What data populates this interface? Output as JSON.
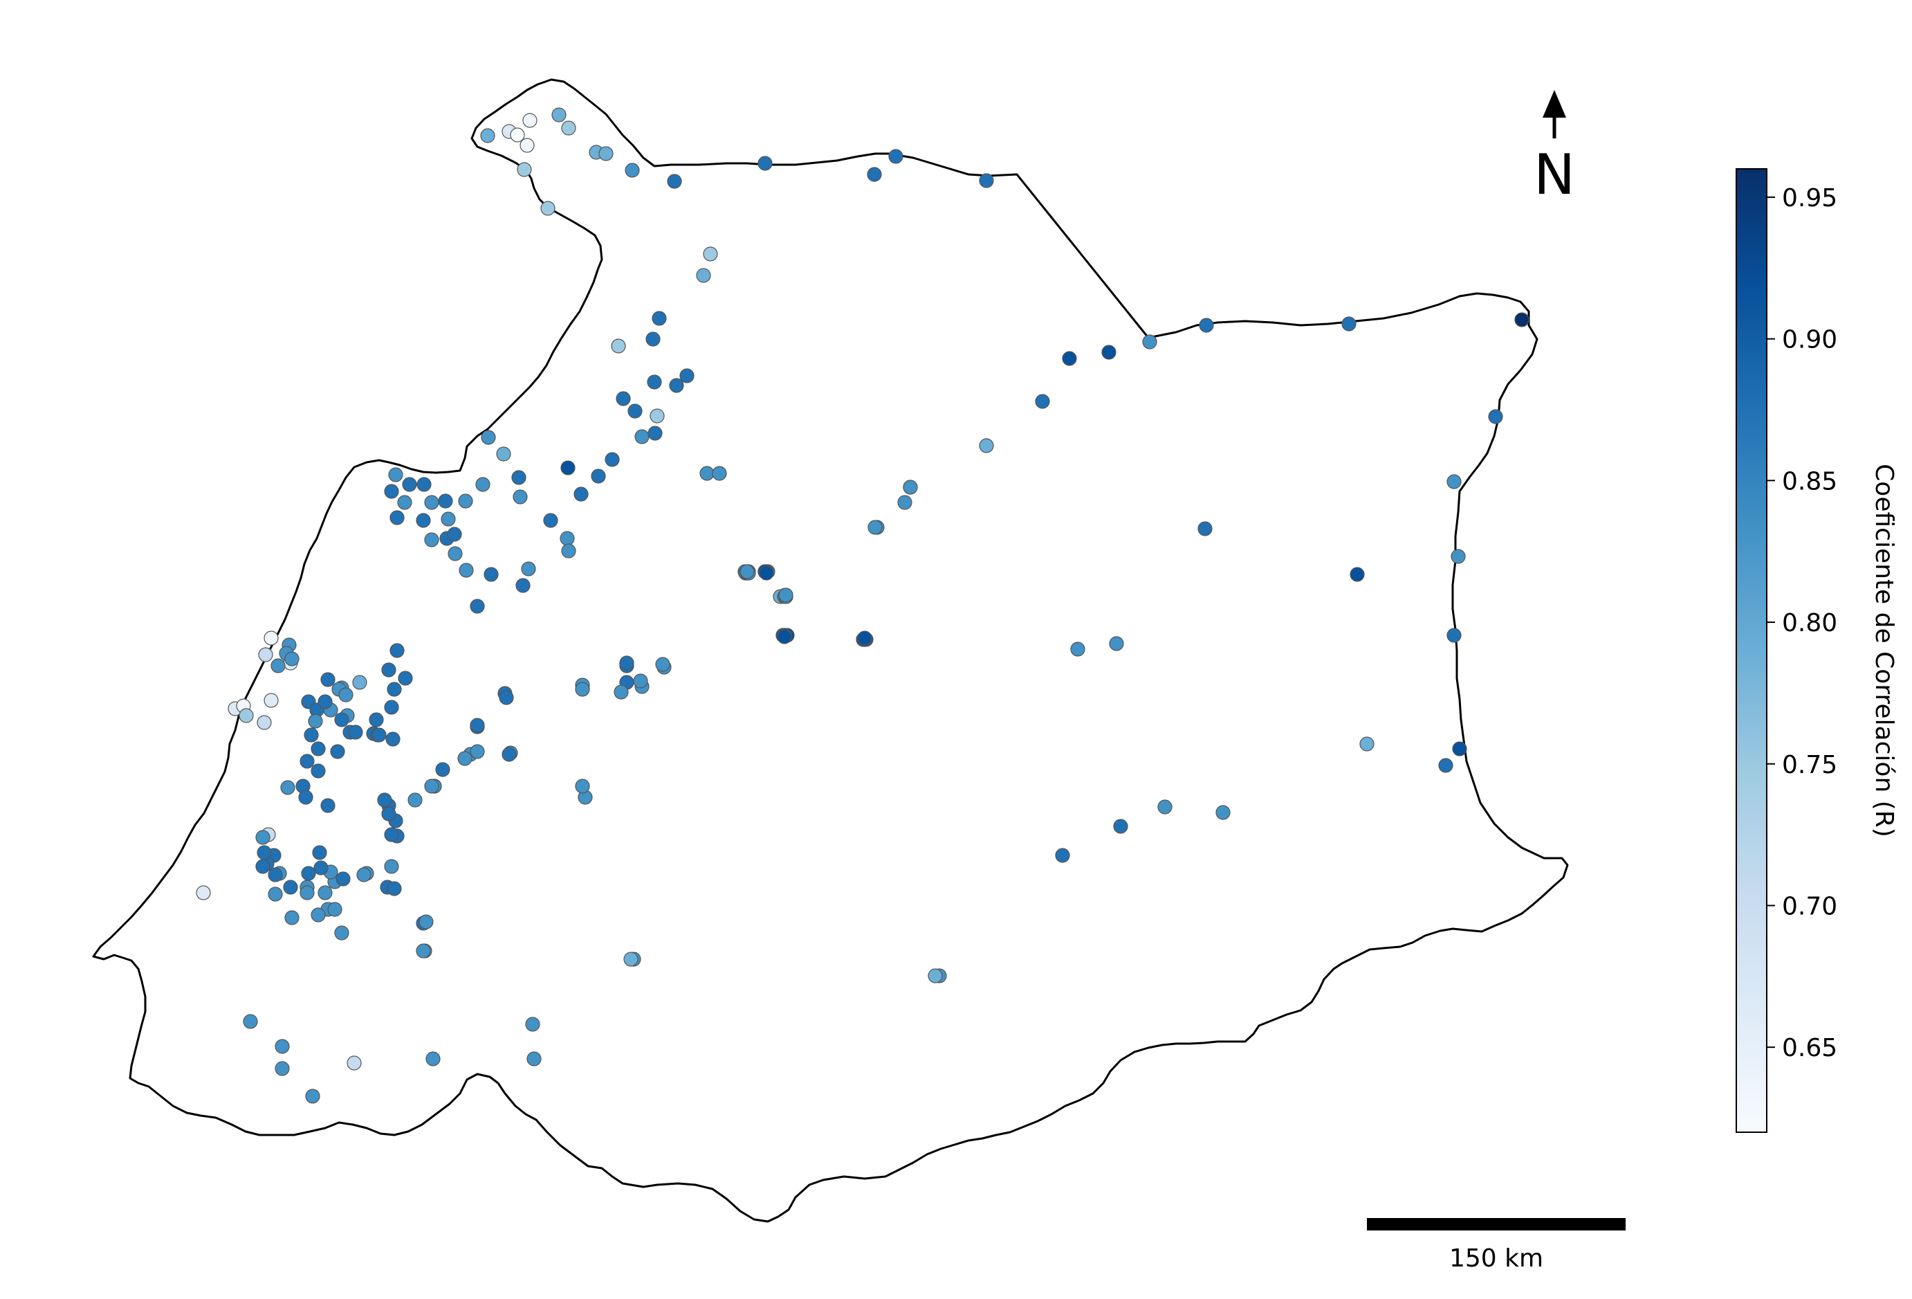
{
  "north_arrow": {
    "letter": "N"
  },
  "scale_bar": {
    "label": "150 km"
  },
  "colorbar": {
    "title": "Coeficiente de Correlación (R)",
    "colormap": "Blues",
    "vmin": 0.62,
    "vmax": 0.96,
    "ticks": [
      "0.65",
      "0.70",
      "0.75",
      "0.80",
      "0.85",
      "0.90",
      "0.95"
    ]
  },
  "colors": {
    "outline": "#000000",
    "marker_edge": "#555555",
    "cmap_low": "#f7fbff",
    "cmap_high": "#08306b"
  }
}
